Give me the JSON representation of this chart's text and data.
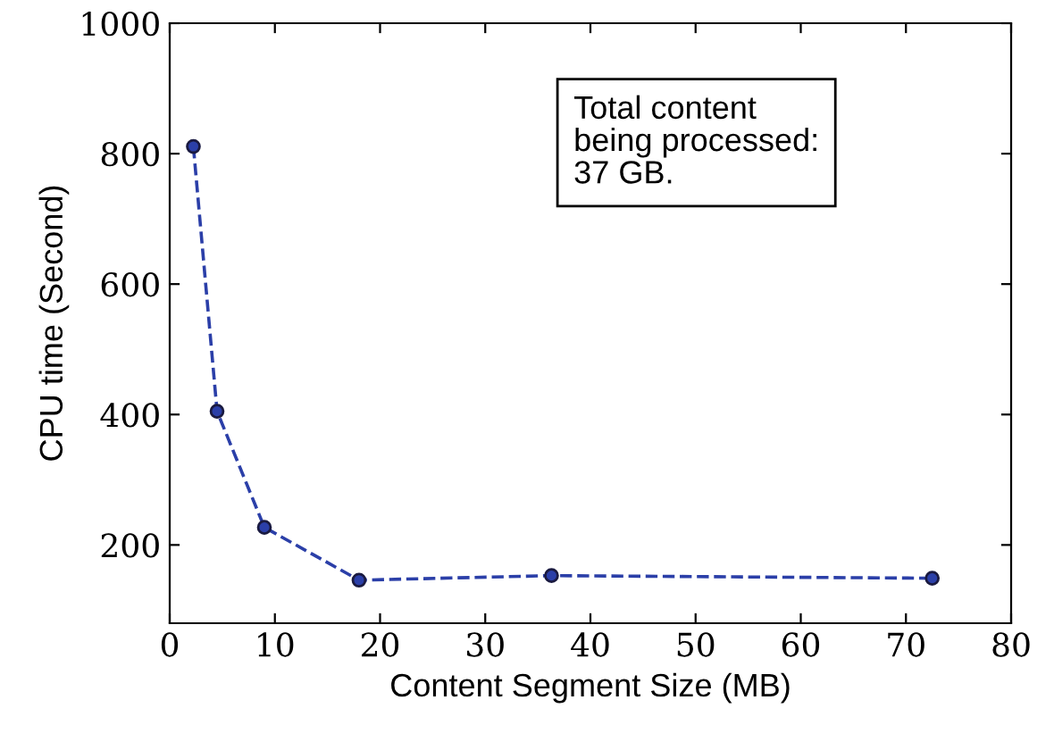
{
  "chart_data": {
    "type": "line",
    "xlabel": "Content Segment Size (MB)",
    "ylabel": "CPU time (Second)",
    "x": [
      2.25,
      4.5,
      9,
      18,
      36.3,
      72.5
    ],
    "series": [
      {
        "color": "#2b3fa8",
        "values": [
          811,
          405,
          227,
          146,
          153,
          149
        ]
      }
    ],
    "xlim": [
      0,
      80
    ],
    "xticks": [
      0,
      10,
      20,
      30,
      40,
      50,
      60,
      70,
      80
    ],
    "ylim": [
      80,
      1000
    ],
    "yticks": [
      200,
      400,
      600,
      800,
      1000
    ],
    "marker": "circle",
    "line_style": "dashed",
    "grid": false,
    "legend": false,
    "annotations": [
      "Total content\nbeing processed:\n37 GB."
    ]
  }
}
